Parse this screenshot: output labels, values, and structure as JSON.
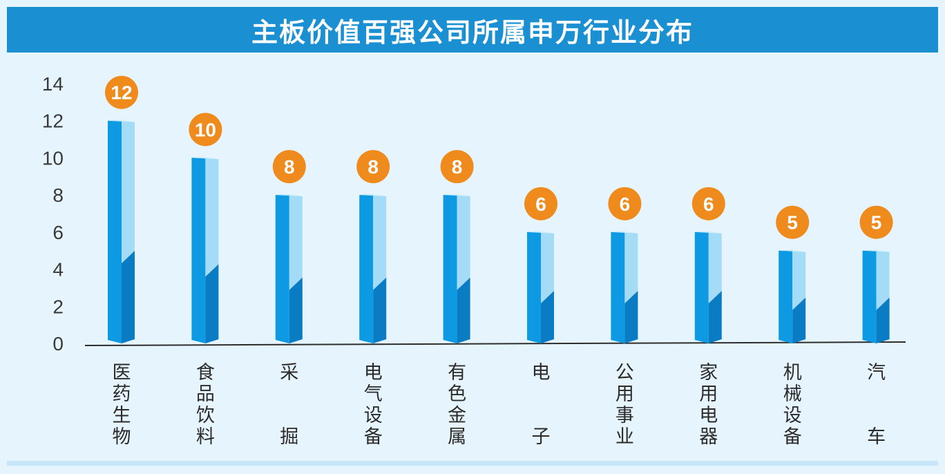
{
  "title": "主板价值百强公司所属申万行业分布",
  "colors": {
    "banner": "#1a8fd2",
    "bar_front": "#0d9ae3",
    "bar_side_light": "#a4dcf8",
    "bar_side_dark": "#0a7cc4",
    "badge": "#ef8a1c",
    "background": "#e6f5fd"
  },
  "chart_data": {
    "type": "bar",
    "title": "主板价值百强公司所属申万行业分布",
    "categories": [
      "医药生物",
      "食品饮料",
      "采掘",
      "电气设备",
      "有色金属",
      "电子",
      "公用事业",
      "家用电器",
      "机械设备",
      "汽车"
    ],
    "values": [
      12,
      10,
      8,
      8,
      8,
      6,
      6,
      6,
      5,
      5
    ],
    "data_labels": [
      "12",
      "10",
      "8",
      "8",
      "8",
      "6",
      "6",
      "6",
      "5",
      "5"
    ],
    "yticks": [
      "0",
      "2",
      "4",
      "6",
      "8",
      "10",
      "12",
      "14"
    ],
    "ylim": [
      0,
      14
    ],
    "grid": false,
    "legend": "none",
    "xlabel": "",
    "ylabel": ""
  }
}
